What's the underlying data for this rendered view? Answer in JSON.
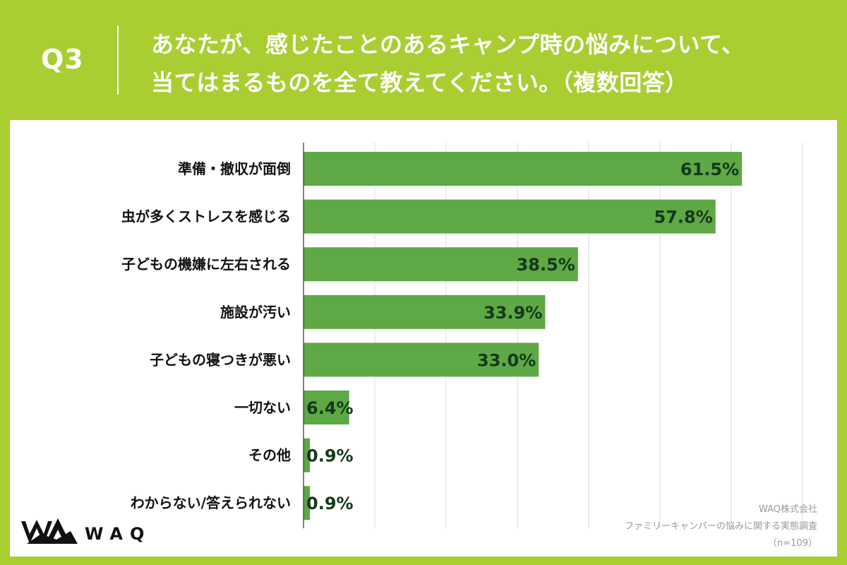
{
  "question": {
    "number": "Q3",
    "line1": "あなたが、感じたことのあるキャンプ時の悩みについて、",
    "line2": "当てはまるものを全て教えてください。（複数回答）"
  },
  "chart_data": {
    "type": "bar",
    "orientation": "horizontal",
    "categories": [
      "準備・撤収が面倒",
      "虫が多くストレスを感じる",
      "子どもの機嫌に左右される",
      "施設が汚い",
      "子どもの寝つきが悪い",
      "一切ない",
      "その他",
      "わからない/答えられない"
    ],
    "values": [
      61.5,
      57.8,
      38.5,
      33.9,
      33.0,
      6.4,
      0.9,
      0.9
    ],
    "value_labels": [
      "61.5%",
      "57.8%",
      "38.5%",
      "33.9%",
      "33.0%",
      "6.4%",
      "0.9%",
      "0.9%"
    ],
    "xlim": [
      0,
      70
    ],
    "grid": true,
    "bar_color": "#5ea845"
  },
  "credits": {
    "company": "WAQ株式会社",
    "survey": "ファミリーキャンパーの悩みに関する実態調査",
    "sample": "（n=109）"
  },
  "logo": {
    "text": "WAQ"
  },
  "colors": {
    "background": "#a9ce32",
    "panel": "#ffffff",
    "bar": "#5ea845",
    "value_text": "#14391a",
    "grid": "#d9d9d9"
  }
}
